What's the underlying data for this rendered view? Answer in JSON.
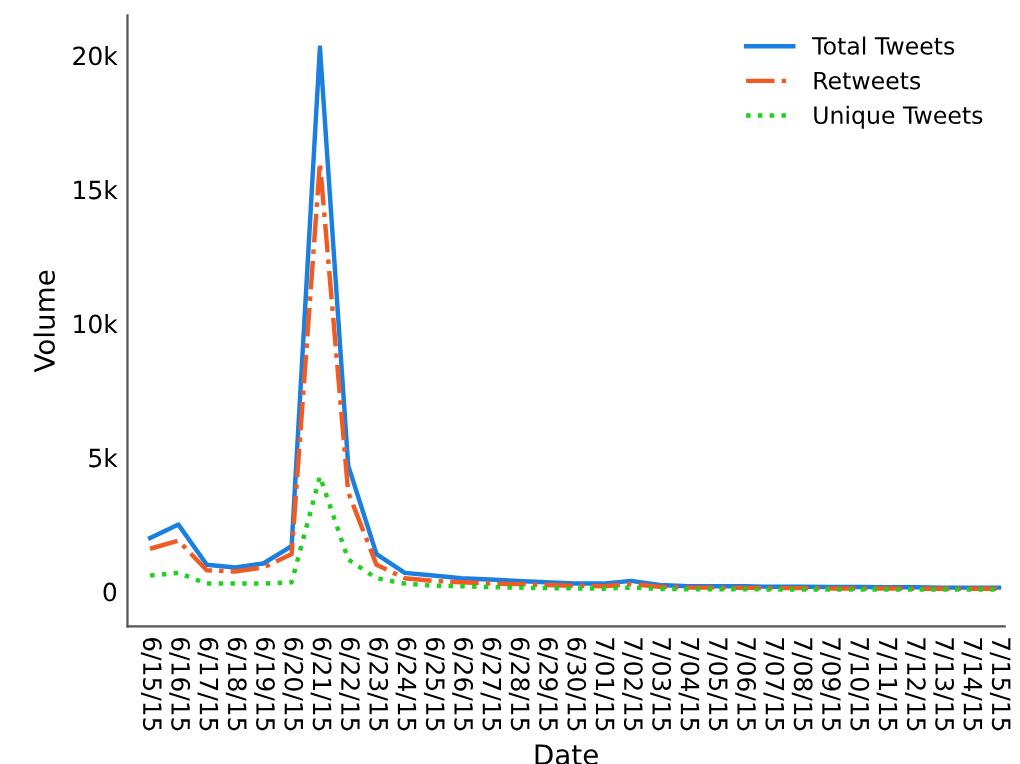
{
  "chart_data": {
    "type": "line",
    "xlabel": "Date",
    "ylabel": "Volume",
    "categories": [
      "6/15/15",
      "6/16/15",
      "6/17/15",
      "6/18/15",
      "6/19/15",
      "6/20/15",
      "6/21/15",
      "6/22/15",
      "6/23/15",
      "6/24/15",
      "6/25/15",
      "6/26/15",
      "6/27/15",
      "6/28/15",
      "6/29/15",
      "6/30/15",
      "7/01/15",
      "7/02/15",
      "7/03/15",
      "7/04/15",
      "7/05/15",
      "7/06/15",
      "7/07/15",
      "7/08/15",
      "7/09/15",
      "7/10/15",
      "7/11/15",
      "7/12/15",
      "7/13/15",
      "7/14/15",
      "7/15/15"
    ],
    "series": [
      {
        "name": "Total Tweets",
        "color": "#1a7fe0",
        "line_style": "solid",
        "values": [
          2000,
          2500,
          1000,
          900,
          1050,
          1700,
          20300,
          4700,
          1400,
          700,
          600,
          500,
          450,
          400,
          350,
          300,
          300,
          400,
          250,
          200,
          200,
          200,
          180,
          180,
          170,
          170,
          160,
          160,
          150,
          150,
          150
        ]
      },
      {
        "name": "Retweets",
        "color": "#f05a23",
        "line_style": "dashdot",
        "values": [
          1600,
          1900,
          800,
          750,
          900,
          1400,
          16000,
          3700,
          1000,
          500,
          400,
          350,
          300,
          280,
          250,
          220,
          200,
          280,
          180,
          150,
          150,
          140,
          130,
          130,
          120,
          120,
          120,
          110,
          110,
          110,
          110
        ]
      },
      {
        "name": "Unique Tweets",
        "color": "#1fd11f",
        "line_style": "dotted",
        "values": [
          600,
          700,
          300,
          300,
          300,
          350,
          4300,
          1200,
          500,
          300,
          220,
          200,
          170,
          150,
          130,
          120,
          110,
          150,
          100,
          90,
          90,
          90,
          80,
          80,
          80,
          80,
          80,
          80,
          80,
          80,
          80
        ]
      }
    ],
    "ylim": [
      -1300,
      21500
    ],
    "yticks": [
      {
        "value": 0,
        "label": "0"
      },
      {
        "value": 5000,
        "label": "5k"
      },
      {
        "value": 10000,
        "label": "10k"
      },
      {
        "value": 15000,
        "label": "15k"
      },
      {
        "value": 20000,
        "label": "20k"
      }
    ],
    "grid": false,
    "legend": "top right",
    "marker": "none"
  }
}
